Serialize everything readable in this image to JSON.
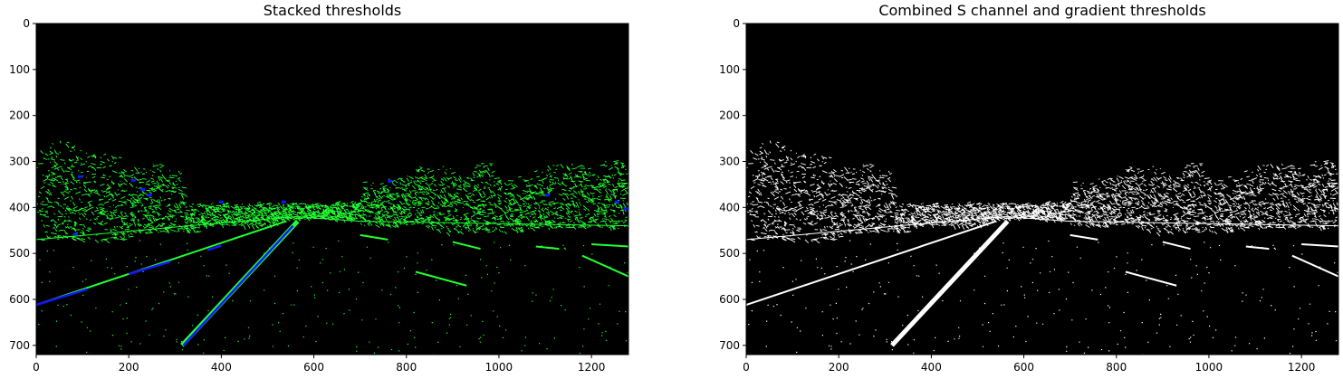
{
  "chart_data": [
    {
      "type": "image",
      "title": "Stacked thresholds",
      "xticks": [
        0,
        200,
        400,
        600,
        800,
        1000,
        1200
      ],
      "yticks": [
        0,
        100,
        200,
        300,
        400,
        500,
        600,
        700
      ],
      "xlim": [
        0,
        1280
      ],
      "ylim": [
        720,
        0
      ],
      "background": "#000000",
      "colors": {
        "gradient": "#22ff33",
        "s_channel": "#1515ff"
      }
    },
    {
      "type": "image",
      "title": "Combined S channel and gradient thresholds",
      "xticks": [
        0,
        200,
        400,
        600,
        800,
        1000,
        1200
      ],
      "yticks": [
        0,
        100,
        200,
        300,
        400,
        500,
        600,
        700
      ],
      "xlim": [
        0,
        1280
      ],
      "ylim": [
        720,
        0
      ],
      "background": "#000000",
      "colors": {
        "pixels": "#ffffff"
      }
    }
  ]
}
